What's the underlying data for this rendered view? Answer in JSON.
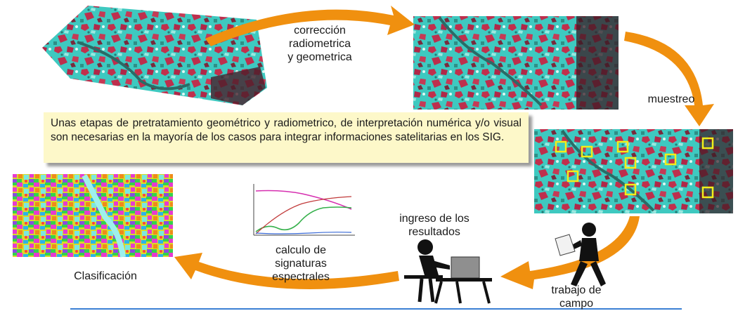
{
  "steps": {
    "correccion": "corrección\nradiometrica\ny geometrica",
    "muestreo": "muestreo",
    "trabajo_campo": "trabajo de\ncampo",
    "ingreso": "ingreso de los\nresultados",
    "calculo": "calculo de\nsignaturas\nespectrales",
    "clasificacion": "Clasificación"
  },
  "note_text": "Unas etapas de pretratamiento geométrico y radiometrico, de interpretación numérica y/o visual son necesarias en la mayoría de los casos para integrar informaciones satelitarias en los SIG.",
  "colors": {
    "arrow": "#f0900f",
    "note_bg": "#fdf8c9",
    "image_cyan": "#3ec9c0",
    "image_red": "#c0304c",
    "sample_box": "#f2ee1a",
    "baseline": "#3a7fd4"
  },
  "icons": [
    "satellite-image-icon",
    "field-worker-icon",
    "computer-user-icon",
    "spectral-chart-icon",
    "classified-map-icon"
  ]
}
